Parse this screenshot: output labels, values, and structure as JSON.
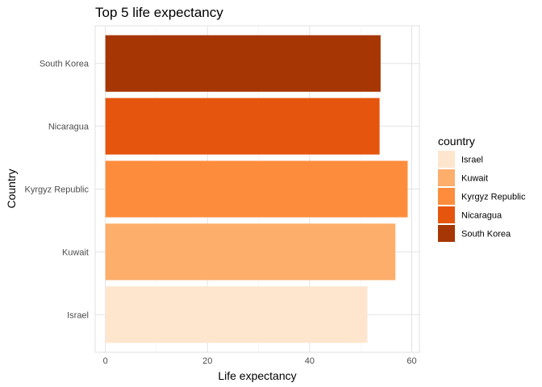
{
  "chart_data": {
    "type": "bar",
    "orientation": "horizontal",
    "title": "Top 5 life expectancy",
    "xlabel": "Life expectancy",
    "ylabel": "Country",
    "categories": [
      "Israel",
      "Kuwait",
      "Kyrgyz Republic",
      "Nicaragua",
      "South Korea"
    ],
    "values": [
      51.3,
      56.8,
      59.2,
      53.7,
      53.9
    ],
    "colors": [
      "#FEE6CE",
      "#FDAE6B",
      "#FD8D3C",
      "#E6550D",
      "#A63603"
    ],
    "xlim": [
      -2,
      61.5
    ],
    "xticks": [
      0,
      20,
      40,
      60
    ],
    "grid": true,
    "legend": {
      "title": "country",
      "position": "right",
      "entries": [
        "Israel",
        "Kuwait",
        "Kyrgyz Republic",
        "Nicaragua",
        "South Korea"
      ]
    }
  }
}
